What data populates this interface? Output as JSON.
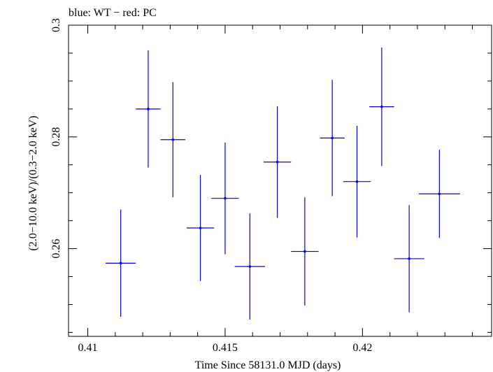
{
  "chart_data": {
    "type": "scatter",
    "title": "blue: WT − red: PC",
    "xlabel": "Time Since 58131.0 MJD (days)",
    "ylabel": "(2.0−10.0 keV)/(0.3−2.0 keV)",
    "xlim": [
      0.4093,
      0.4247
    ],
    "ylim": [
      0.2443,
      0.3
    ],
    "x_ticks": [
      0.41,
      0.415,
      0.42
    ],
    "x_tick_labels": [
      "0.41",
      "0.415",
      "0.42"
    ],
    "y_ticks": [
      0.26,
      0.28,
      0.3
    ],
    "y_tick_labels": [
      "0.26",
      "0.28",
      "0.3"
    ],
    "grid": false,
    "series": [
      {
        "name": "WT",
        "color": "#0000ee",
        "points": [
          {
            "x": 0.4112,
            "xerr": 0.00055,
            "y": 0.2574,
            "yerr": 0.0096
          },
          {
            "x": 0.4122,
            "xerr": 0.00045,
            "y": 0.285,
            "yerr": 0.0105
          },
          {
            "x": 0.4131,
            "xerr": 0.00045,
            "y": 0.2795,
            "yerr": 0.0103
          },
          {
            "x": 0.4141,
            "xerr": 0.0005,
            "y": 0.2637,
            "yerr": 0.0095
          },
          {
            "x": 0.415,
            "xerr": 0.0005,
            "y": 0.269,
            "yerr": 0.01
          },
          {
            "x": 0.4159,
            "xerr": 0.00055,
            "y": 0.2568,
            "yerr": 0.0095
          },
          {
            "x": 0.4169,
            "xerr": 0.0005,
            "y": 0.2755,
            "yerr": 0.01
          },
          {
            "x": 0.4179,
            "xerr": 0.0005,
            "y": 0.2595,
            "yerr": 0.0097
          },
          {
            "x": 0.4189,
            "xerr": 0.00045,
            "y": 0.2798,
            "yerr": 0.0104
          },
          {
            "x": 0.4198,
            "xerr": 0.0005,
            "y": 0.272,
            "yerr": 0.01
          },
          {
            "x": 0.4207,
            "xerr": 0.00045,
            "y": 0.2854,
            "yerr": 0.0106
          },
          {
            "x": 0.4217,
            "xerr": 0.00055,
            "y": 0.2582,
            "yerr": 0.0096
          },
          {
            "x": 0.4228,
            "xerr": 0.00075,
            "y": 0.2698,
            "yerr": 0.0079
          }
        ]
      }
    ]
  }
}
